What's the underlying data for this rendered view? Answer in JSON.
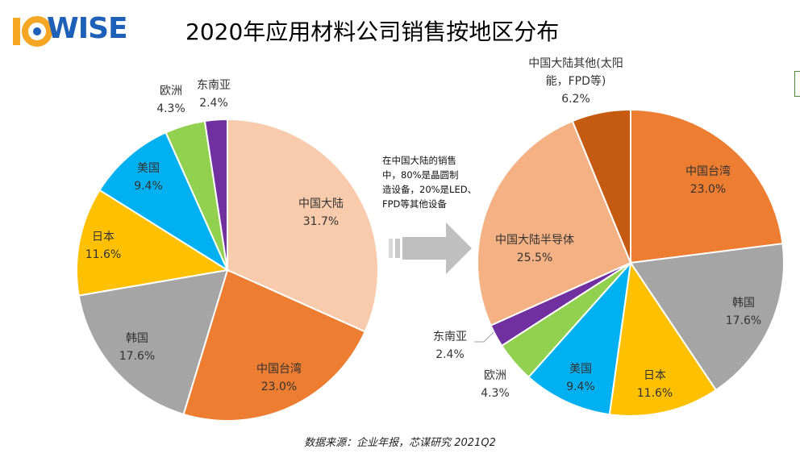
{
  "logo": {
    "text": "WISE",
    "icon": "ic-circle-logo-icon"
  },
  "title": "2020年应用材料公司销售按地区分布",
  "note": [
    "在中国大陆的销售",
    "中，80%是晶圆制",
    "造设备，20%是LED、",
    "FPD等其他设备"
  ],
  "source": "数据来源：企业年报，芯谋研究   2021Q2",
  "chart_data": [
    {
      "type": "pie",
      "title": "",
      "slices": [
        {
          "label": "中国大陆",
          "value": 31.7,
          "display": "31.7%",
          "color": "#f8cbad"
        },
        {
          "label": "中国台湾",
          "value": 23.0,
          "display": "23.0%",
          "color": "#ed7d31"
        },
        {
          "label": "韩国",
          "value": 17.6,
          "display": "17.6%",
          "color": "#a5a5a5"
        },
        {
          "label": "日本",
          "value": 11.6,
          "display": "11.6%",
          "color": "#ffc000"
        },
        {
          "label": "美国",
          "value": 9.4,
          "display": "9.4%",
          "color": "#00b0f0"
        },
        {
          "label": "欧洲",
          "value": 4.3,
          "display": "4.3%",
          "color": "#92d050"
        },
        {
          "label": "东南亚",
          "value": 2.4,
          "display": "2.4%",
          "color": "#7030a0"
        }
      ]
    },
    {
      "type": "pie",
      "title": "",
      "slices": [
        {
          "label": "中国台湾",
          "value": 23.0,
          "display": "23.0%",
          "color": "#ed7d31"
        },
        {
          "label": "韩国",
          "value": 17.6,
          "display": "17.6%",
          "color": "#a5a5a5"
        },
        {
          "label": "日本",
          "value": 11.6,
          "display": "11.6%",
          "color": "#ffc000"
        },
        {
          "label": "美国",
          "value": 9.4,
          "display": "9.4%",
          "color": "#00b0f0"
        },
        {
          "label": "欧洲",
          "value": 4.3,
          "display": "4.3%",
          "color": "#92d050"
        },
        {
          "label": "东南亚",
          "value": 2.4,
          "display": "2.4%",
          "color": "#7030a0"
        },
        {
          "label": "中国大陆半导体",
          "value": 25.5,
          "display": "25.5%",
          "color": "#f4b183"
        },
        {
          "label": "中国大陆其他(太阳能，FPD等)",
          "label_lines": [
            "中国大陆其他(太阳",
            "能，FPD等)"
          ],
          "value": 6.2,
          "display": "6.2%",
          "color": "#c55a11"
        }
      ]
    }
  ]
}
